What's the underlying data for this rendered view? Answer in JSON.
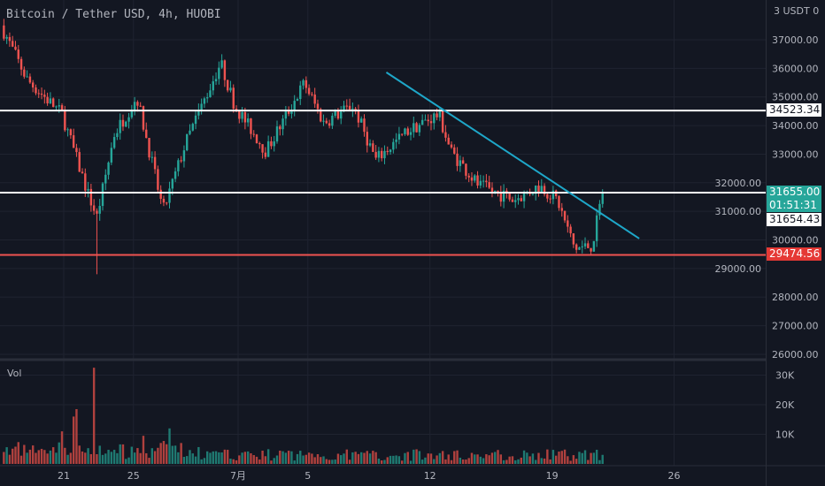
{
  "header": {
    "title": "Bitcoin / Tether USD, 4h, HUOBI",
    "top_value": "3 USDT 0"
  },
  "volume_label": "Vol",
  "colors": {
    "up": "#26a69a",
    "down": "#ef5350",
    "trendline": "#1ea7c9",
    "bg": "#131722"
  },
  "chart_data": {
    "type": "candlestick",
    "interval": "4h",
    "price_axis": {
      "ticks": [
        "37000.00",
        "36000.00",
        "35000.00",
        "34000.00",
        "33000.00",
        "32000.00",
        "31000.00",
        "30000.00",
        "29000.00",
        "28000.00",
        "27000.00",
        "26000.00"
      ],
      "range": [
        26000,
        37000
      ]
    },
    "volume_axis": {
      "ticks": [
        "30K",
        "20K",
        "10K"
      ],
      "range": [
        0,
        30000
      ]
    },
    "time_axis": {
      "ticks": [
        {
          "label": "21",
          "day": 0
        },
        {
          "label": "25",
          "day": 4
        },
        {
          "label": "7月",
          "day": 10
        },
        {
          "label": "5",
          "day": 14
        },
        {
          "label": "12",
          "day": 21
        },
        {
          "label": "19",
          "day": 28
        },
        {
          "label": "26",
          "day": 35
        }
      ]
    },
    "price_keypoints_day_vs_close": [
      [
        -3.6,
        37500
      ],
      [
        -2.1,
        35600
      ],
      [
        -0.1,
        34400
      ],
      [
        0.7,
        32900
      ],
      [
        1.4,
        31600
      ],
      [
        1.9,
        30800
      ],
      [
        2.9,
        33700
      ],
      [
        4.2,
        35000
      ],
      [
        5.7,
        31000
      ],
      [
        7.0,
        33400
      ],
      [
        9.0,
        36200
      ],
      [
        9.8,
        34700
      ],
      [
        11.6,
        33100
      ],
      [
        13.8,
        35500
      ],
      [
        14.9,
        34100
      ],
      [
        16.6,
        34700
      ],
      [
        17.9,
        32800
      ],
      [
        19.7,
        33800
      ],
      [
        21.5,
        34400
      ],
      [
        22.2,
        33100
      ],
      [
        23.8,
        31900
      ],
      [
        25.8,
        31400
      ],
      [
        27.3,
        31900
      ],
      [
        28.3,
        31400
      ],
      [
        29.3,
        29700
      ],
      [
        30.3,
        29800
      ],
      [
        30.9,
        31655
      ]
    ],
    "volume_spikes": [
      [
        -0.1,
        11000
      ],
      [
        0.6,
        16000
      ],
      [
        0.8,
        18500
      ],
      [
        1.8,
        32500
      ],
      [
        4.5,
        9500
      ],
      [
        6.1,
        12000
      ]
    ],
    "horizontal_lines": [
      {
        "price": 34523.34,
        "label": "34523.34",
        "color": "#ffffff"
      },
      {
        "price": 31655.0,
        "label": "31655.00",
        "color": "#ffffff"
      },
      {
        "price": 29474.56,
        "label": "29474.56",
        "color": "#ef5350"
      }
    ],
    "trendline": {
      "start": [
        18.5,
        35860
      ],
      "end": [
        33.0,
        30050
      ]
    },
    "last_price": {
      "value": "31655.00",
      "countdown": "01:51:31"
    },
    "crosshair_price": "31654.43",
    "wick_low": {
      "day": 1.9,
      "price": 28800
    }
  }
}
